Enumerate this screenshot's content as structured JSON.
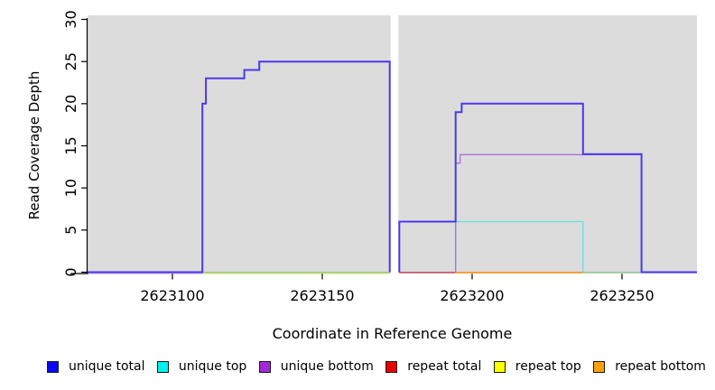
{
  "chart_data": {
    "type": "line",
    "subtype": "step-coverage-plot",
    "title": "",
    "xlabel": "Coordinate in Reference Genome",
    "ylabel": "Read Coverage Depth",
    "x_range": [
      2623071.7,
      2623275.0
    ],
    "y_range": [
      0,
      30
    ],
    "x_ticks": [
      2623100,
      2623150,
      2623200,
      2623250
    ],
    "y_ticks": [
      0,
      5,
      10,
      15,
      20,
      25,
      30
    ],
    "grid": false,
    "panel_bg": "#dcdcdc",
    "gap_region": {
      "x1": 2623172.8,
      "x2": 2623175.4,
      "note": "white no-data column"
    },
    "series_summary": [
      {
        "name": "unique total",
        "values": "0 until 2623110; 20 at 2623110; 23 from 2623111; 24 from 2623124; 25 from 2623129 to 2623172; gap; 6 from 2623176; 19 at 2623194; 20 from 2623196 to 2623237; 14 to 2623256; 0 after"
      },
      {
        "name": "unique top",
        "values": "0 everywhere except 6 from 2623194 to 2623237"
      },
      {
        "name": "unique bottom",
        "values": "0 everywhere except 13 at 2623194 then 14 from 2623196 to 2623256"
      },
      {
        "name": "repeat total",
        "values": "0 across its extent 2623176-2623194"
      },
      {
        "name": "repeat top",
        "values": "0 across its extent 2623110-2623172"
      },
      {
        "name": "repeat bottom",
        "values": "0 across its extent 2623194-2623237"
      }
    ],
    "strokes": [
      {
        "series": "unique bottom",
        "role": "zero-line",
        "color": "#c8a2e6",
        "width": 1.2,
        "dy": 1.4,
        "points": [
          [
            2623071.7,
            0
          ],
          [
            2623110,
            0
          ]
        ]
      },
      {
        "series": "repeat top",
        "role": "zero-line",
        "color": "#e8e26a",
        "width": 1.2,
        "dy": 1.4,
        "points": [
          [
            2623110,
            0
          ],
          [
            2623172.5,
            0
          ]
        ]
      },
      {
        "series": "unique top + repeat top overlap",
        "role": "zero-line",
        "color": "#8ecb8e",
        "width": 1.4,
        "dy": 0.3,
        "points": [
          [
            2623110,
            0
          ],
          [
            2623172.5,
            0
          ]
        ]
      },
      {
        "series": "repeat total",
        "role": "zero-line",
        "color": "#c23b55",
        "width": 1.4,
        "dy": 0.3,
        "points": [
          [
            2623175.7,
            0
          ],
          [
            2623194.5,
            0
          ]
        ]
      },
      {
        "series": "repeat bottom",
        "role": "zero-line",
        "color": "#ff9414",
        "width": 1.6,
        "dy": 0.3,
        "points": [
          [
            2623194.5,
            0
          ],
          [
            2623237,
            0
          ]
        ]
      },
      {
        "series": "unique top + repeat top overlap",
        "role": "zero-line",
        "color": "#8ecb8e",
        "width": 1.4,
        "dy": 0.3,
        "points": [
          [
            2623237,
            0
          ],
          [
            2623256.5,
            0
          ]
        ]
      },
      {
        "series": "unique top",
        "role": "coverage",
        "color": "#5fe3e3",
        "width": 1.3,
        "dy": 0,
        "points": [
          [
            2623194.5,
            0
          ],
          [
            2623194.5,
            6
          ],
          [
            2623237,
            6
          ],
          [
            2623237,
            0
          ]
        ]
      },
      {
        "series": "unique bottom",
        "role": "coverage",
        "color": "#b06fd8",
        "width": 1.3,
        "dy": 0.5,
        "points": [
          [
            2623194.5,
            0
          ],
          [
            2623194.5,
            13
          ],
          [
            2623196,
            13
          ],
          [
            2623196,
            14
          ],
          [
            2623256.5,
            14
          ],
          [
            2623256.5,
            0
          ]
        ]
      },
      {
        "series": "unique total",
        "role": "coverage",
        "color": "#4b38ec",
        "width": 2,
        "dy": 0,
        "points": [
          [
            2623071.7,
            0
          ],
          [
            2623110,
            0
          ],
          [
            2623110,
            20
          ],
          [
            2623111.2,
            20
          ],
          [
            2623111.2,
            23
          ],
          [
            2623124,
            23
          ],
          [
            2623124,
            24
          ],
          [
            2623129,
            24
          ],
          [
            2623129,
            25
          ],
          [
            2623172.5,
            25
          ],
          [
            2623172.5,
            0
          ]
        ]
      },
      {
        "series": "unique total",
        "role": "coverage",
        "color": "#4b38ec",
        "width": 2,
        "dy": 0,
        "points": [
          [
            2623175.7,
            0
          ],
          [
            2623175.7,
            6
          ],
          [
            2623194.5,
            6
          ],
          [
            2623194.5,
            19
          ],
          [
            2623196.5,
            19
          ],
          [
            2623196.5,
            20
          ],
          [
            2623237,
            20
          ],
          [
            2623237,
            14
          ],
          [
            2623256.5,
            14
          ],
          [
            2623256.5,
            0
          ],
          [
            2623275,
            0
          ]
        ]
      }
    ],
    "legend": {
      "position": "bottom",
      "entries": [
        {
          "label": "unique total",
          "color": "#0a0af0"
        },
        {
          "label": "unique top",
          "color": "#00f0f0"
        },
        {
          "label": "unique bottom",
          "color": "#a428d8"
        },
        {
          "label": "repeat total",
          "color": "#e60000"
        },
        {
          "label": "repeat top",
          "color": "#ffff00"
        },
        {
          "label": "repeat bottom",
          "color": "#ffa010"
        }
      ]
    }
  }
}
